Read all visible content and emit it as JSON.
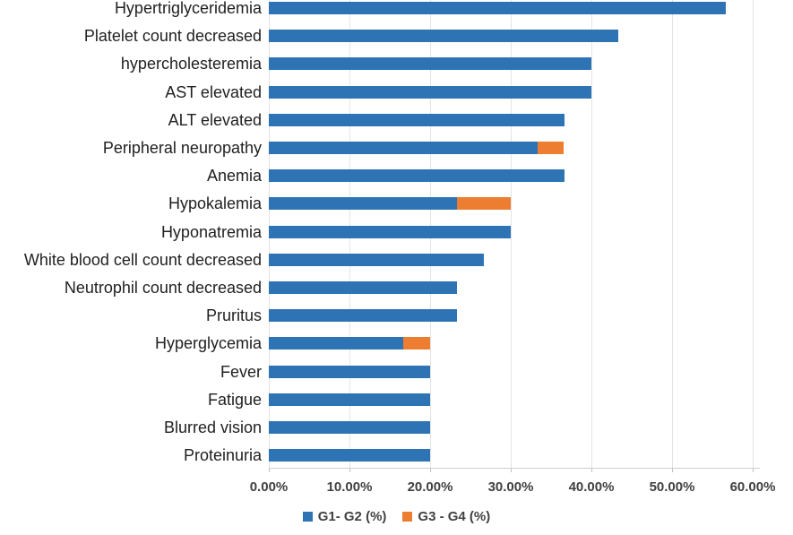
{
  "chart": {
    "background_color": "#FFFFFF",
    "grid_color": "#E3E3E3",
    "axis_line_color": "#CFCFCF",
    "tick_mark_color": "#BFBFBF",
    "tick_label_color": "#404040",
    "category_label_color": "#212121",
    "legend_text_color": "#404040"
  },
  "chart_data": {
    "type": "bar",
    "orientation": "horizontal",
    "stacked": true,
    "title": "",
    "xlabel": "",
    "ylabel": "",
    "grid": "vertical",
    "legend_position": "bottom",
    "xlim": [
      0,
      60
    ],
    "x_tick_labels": [
      "0.00%",
      "10.00%",
      "20.00%",
      "30.00%",
      "40.00%",
      "50.00%",
      "60.00%"
    ],
    "x_tick_values": [
      0,
      10,
      20,
      30,
      40,
      50,
      60
    ],
    "categories": [
      "Hypertriglyceridemia",
      "Platelet count decreased",
      "hypercholesteremia",
      "AST elevated",
      "ALT elevated",
      "Peripheral neuropathy",
      "Anemia",
      "Hypokalemia",
      "Hyponatremia",
      "White blood cell count decreased",
      "Neutrophil count decreased",
      "Pruritus",
      "Hyperglycemia",
      "Fever",
      "Fatigue",
      "Blurred vision",
      "Proteinuria"
    ],
    "series": [
      {
        "name": "G1- G2 (%)",
        "color": "#2E74B5",
        "values": [
          56.7,
          43.3,
          40.0,
          40.0,
          36.7,
          33.3,
          36.7,
          23.3,
          30.0,
          26.7,
          23.3,
          23.3,
          16.7,
          20.0,
          20.0,
          20.0,
          20.0
        ]
      },
      {
        "name": "G3 - G4 (%)",
        "color": "#ED7D31",
        "values": [
          0,
          0,
          0,
          0,
          0,
          3.3,
          0,
          6.7,
          0,
          0,
          0,
          0,
          3.3,
          0,
          0,
          0,
          0
        ]
      }
    ]
  }
}
